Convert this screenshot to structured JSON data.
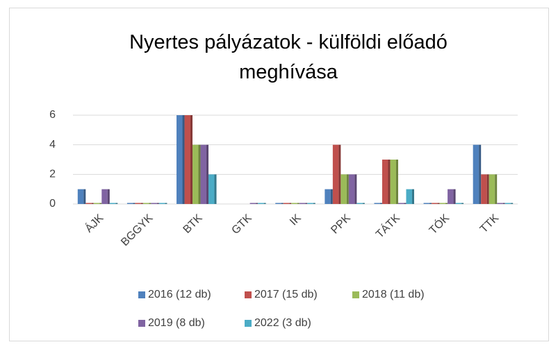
{
  "chart_data": {
    "type": "bar",
    "title": "Nyertes pályázatok - külföldi előadó meghívása",
    "categories": [
      "ÁJK",
      "BGGYK",
      "BTK",
      "GTK",
      "IK",
      "PPK",
      "TÁTK",
      "TÓK",
      "TTK"
    ],
    "series": [
      {
        "name": "2016 (12 db)",
        "color": "#4f81bd",
        "values": [
          1,
          0,
          6,
          null,
          0,
          1,
          0,
          0,
          4
        ]
      },
      {
        "name": "2017 (15 db)",
        "color": "#c0504d",
        "values": [
          0,
          0,
          6,
          null,
          0,
          4,
          3,
          0,
          2
        ]
      },
      {
        "name": "2018 (11 db)",
        "color": "#9bbb59",
        "values": [
          0,
          0,
          4,
          null,
          0,
          2,
          3,
          0,
          2
        ]
      },
      {
        "name": "2019 (8 db)",
        "color": "#8064a2",
        "values": [
          1,
          0,
          4,
          0,
          0,
          2,
          0,
          1,
          0
        ]
      },
      {
        "name": "2022 (3 db)",
        "color": "#4bacc6",
        "values": [
          0,
          0,
          2,
          0,
          0,
          0,
          1,
          0,
          0
        ]
      }
    ],
    "ylim": [
      0,
      6
    ],
    "yticks": [
      0,
      2,
      4,
      6
    ],
    "grid": true,
    "legend": "bottom"
  }
}
